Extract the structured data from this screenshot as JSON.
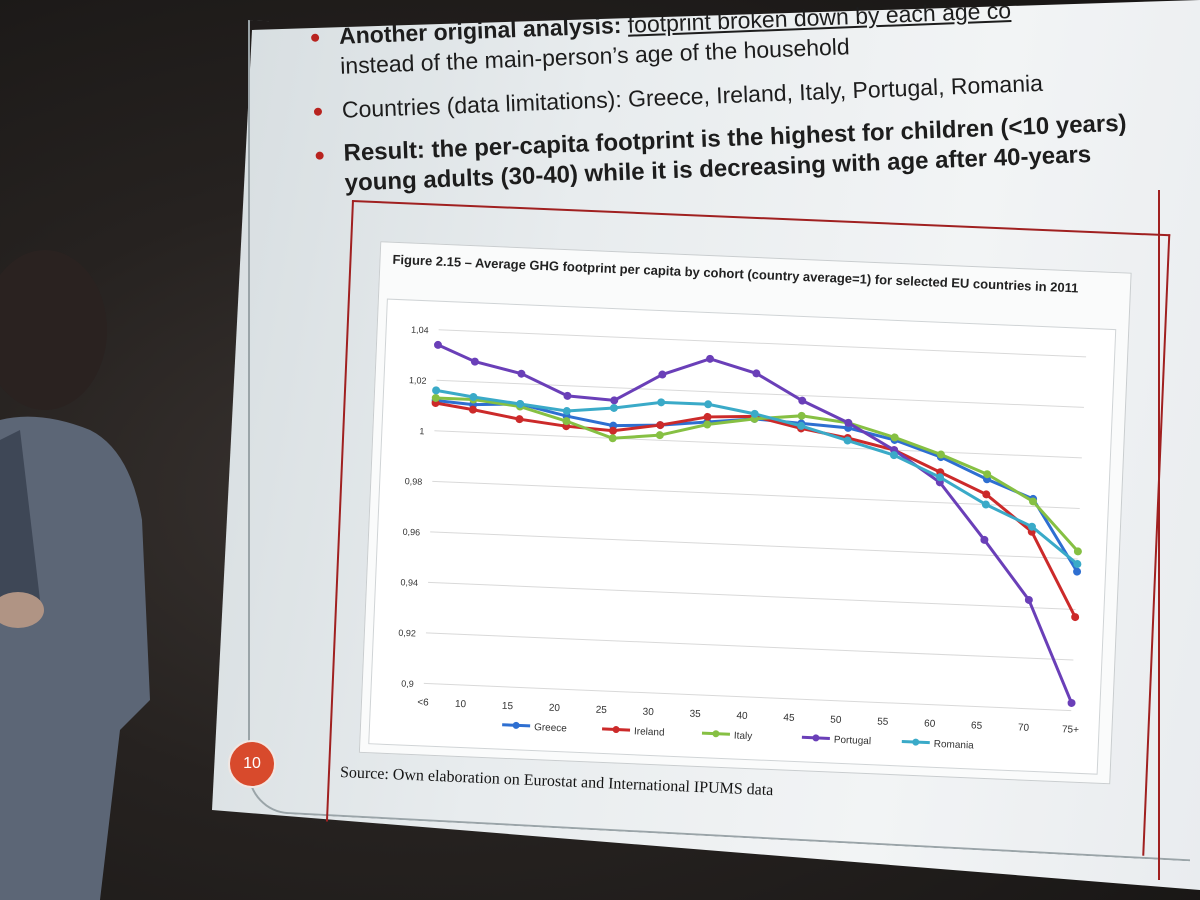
{
  "slide": {
    "bullets": [
      {
        "bold": "Another original analysis:",
        "underlined": "footprint broken down by each age co",
        "rest": "instead of the main-person’s age of the household"
      },
      {
        "text": "Countries (data limitations): Greece, Ireland, Italy, Portugal, Romania"
      },
      {
        "line1": "Result: the per-capita footprint is the highest for children (<10 years)",
        "line2": "young adults (30-40) while it is decreasing with age after 40-years"
      }
    ],
    "page_number": "10",
    "source": "Source: Own elaboration on Eurostat and International IPUMS data"
  },
  "colors": {
    "Greece": "#2e6fd1",
    "Ireland": "#cc2a2a",
    "Italy": "#86c043",
    "Portugal": "#6a3fb8",
    "Romania": "#3aaac8",
    "bullet": "#b8231f",
    "page_badge": "#d84a2c"
  },
  "chart_data": {
    "type": "line",
    "title": "Figure 2.15 – Average GHG footprint per capita by cohort (country average=1) for selected EU countries in 2011",
    "xlabel": "",
    "ylabel": "",
    "x_tick_labels": [
      "<6",
      "10",
      "15",
      "20",
      "25",
      "30",
      "35",
      "40",
      "45",
      "50",
      "55",
      "60",
      "65",
      "70",
      "75+"
    ],
    "y_tick_labels": [
      "1,04",
      "1,02",
      "1",
      "0,98",
      "0,96",
      "0,94",
      "0,92",
      "0,9"
    ],
    "ylim": [
      0.9,
      1.04
    ],
    "grid": true,
    "legend": "bottom",
    "x": [
      6,
      10,
      15,
      20,
      25,
      30,
      35,
      40,
      45,
      50,
      55,
      60,
      65,
      70,
      75
    ],
    "series": [
      {
        "name": "Greece",
        "values": [
          1.012,
          1.011,
          1.012,
          1.008,
          1.005,
          1.006,
          1.008,
          1.01,
          1.009,
          1.008,
          1.004,
          0.998,
          0.99,
          0.983,
          0.955
        ]
      },
      {
        "name": "Ireland",
        "values": [
          1.011,
          1.009,
          1.006,
          1.004,
          1.003,
          1.006,
          1.01,
          1.011,
          1.007,
          1.004,
          1.0,
          0.992,
          0.984,
          0.97,
          0.937
        ]
      },
      {
        "name": "Italy",
        "values": [
          1.013,
          1.013,
          1.011,
          1.006,
          1.0,
          1.002,
          1.007,
          1.01,
          1.012,
          1.01,
          1.005,
          0.999,
          0.992,
          0.982,
          0.963
        ]
      },
      {
        "name": "Portugal",
        "values": [
          1.034,
          1.028,
          1.024,
          1.016,
          1.015,
          1.026,
          1.033,
          1.028,
          1.018,
          1.01,
          1.0,
          0.988,
          0.966,
          0.943,
          0.903
        ]
      },
      {
        "name": "Romania",
        "values": [
          1.016,
          1.014,
          1.012,
          1.01,
          1.012,
          1.015,
          1.015,
          1.012,
          1.008,
          1.003,
          0.998,
          0.99,
          0.98,
          0.972,
          0.958
        ]
      }
    ]
  }
}
